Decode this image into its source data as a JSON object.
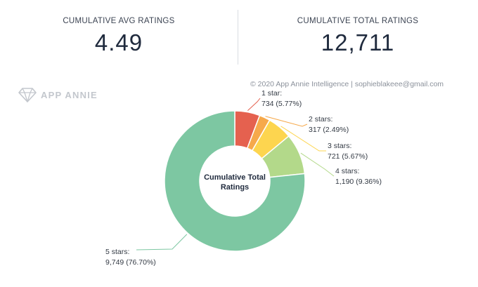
{
  "stats": {
    "avg_label": "CUMULATIVE AVG RATINGS",
    "avg_value": "4.49",
    "total_label": "CUMULATIVE TOTAL RATINGS",
    "total_value": "12,711"
  },
  "copyright": "© 2020 App Annie Intelligence | sophieblakeee@gmail.com",
  "logo": {
    "text": "APP ANNIE",
    "icon": "diamond-logo-icon"
  },
  "chart_data": {
    "type": "pie",
    "variant": "donut",
    "center_label": [
      "Cumulative Total",
      "Ratings"
    ],
    "categories": [
      "1 star",
      "2 stars",
      "3 stars",
      "4 stars",
      "5 stars"
    ],
    "values": [
      734,
      317,
      721,
      1190,
      9749
    ],
    "percents": [
      5.77,
      2.49,
      5.67,
      9.36,
      76.7
    ],
    "labels": [
      [
        "1 star:",
        "734 (5.77%)"
      ],
      [
        "2 stars:",
        "317 (2.49%)"
      ],
      [
        "3 stars:",
        "721 (5.67%)"
      ],
      [
        "4 stars:",
        "1,190 (9.36%)"
      ],
      [
        "5 stars:",
        "9,749 (76.70%)"
      ]
    ],
    "colors": [
      "#e5614f",
      "#f6a94b",
      "#fdd54f",
      "#b3d98a",
      "#7dc7a2"
    ]
  }
}
